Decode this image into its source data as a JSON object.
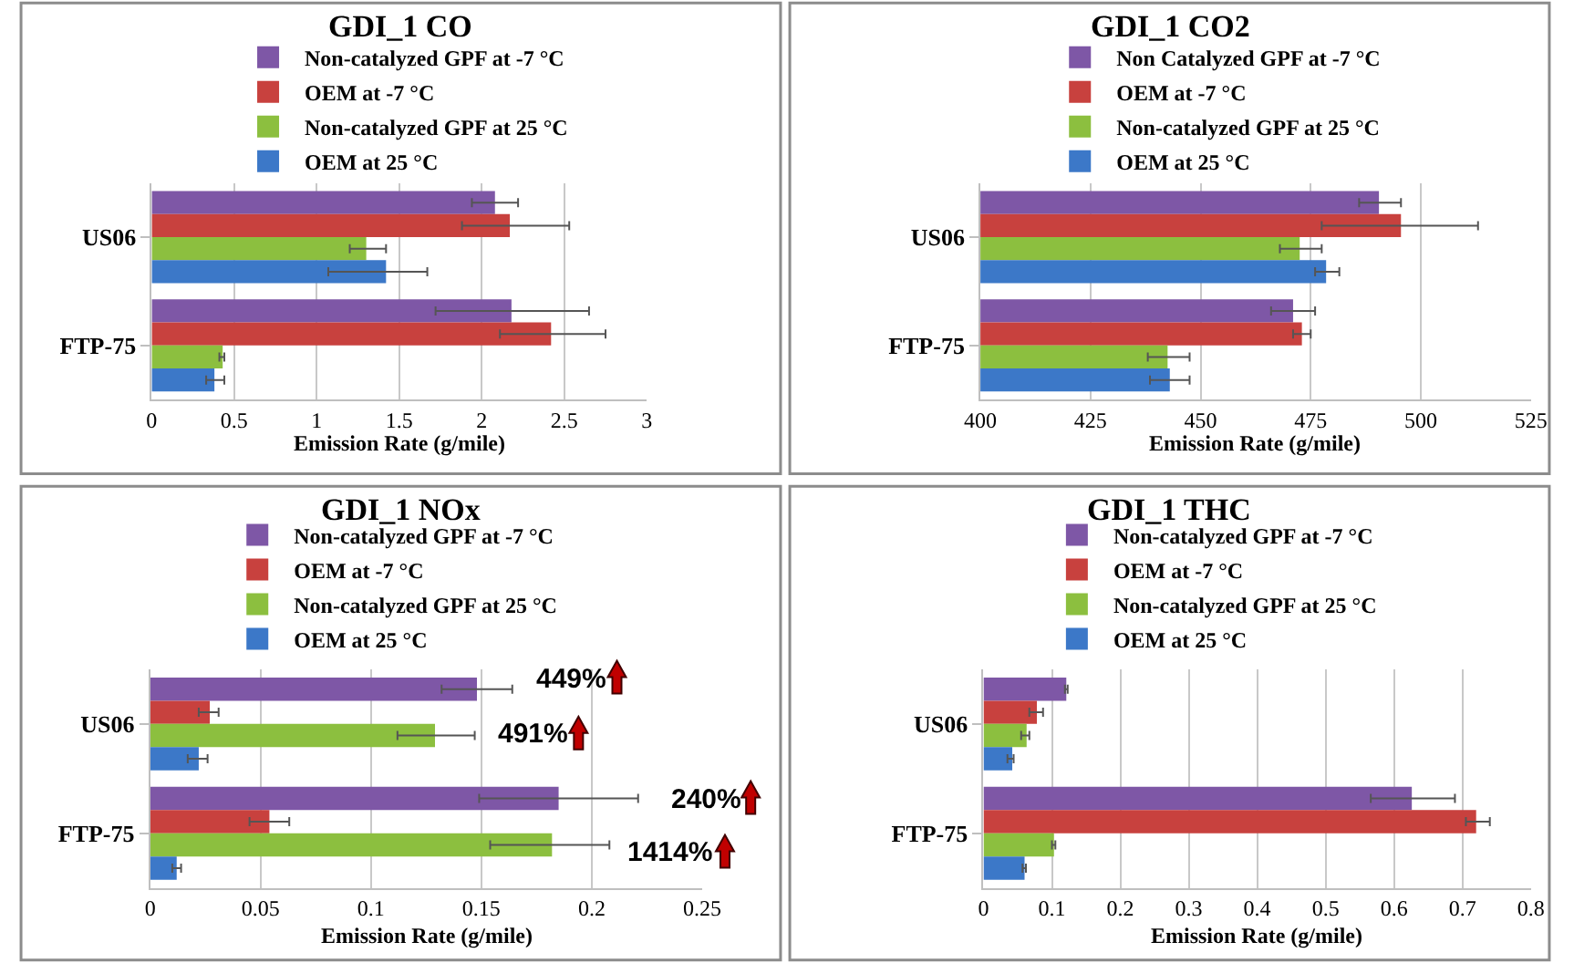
{
  "chart_data": [
    {
      "type": "bar",
      "orientation": "horizontal",
      "title": "GDI_1 CO",
      "xlabel": "Emission Rate (g/mile)",
      "categories": [
        "US06",
        "FTP-75"
      ],
      "xlim": [
        0,
        3
      ],
      "xticks": [
        0,
        0.5,
        1,
        1.5,
        2,
        2.5,
        3
      ],
      "grid": "x",
      "legend": "top",
      "series": [
        {
          "name": "Non-catalyzed GPF at -7 °C",
          "color": "#7e57a6",
          "values": [
            2.08,
            2.18
          ],
          "errors": [
            [
              1.94,
              2.22
            ],
            [
              1.72,
              2.65
            ]
          ]
        },
        {
          "name": "OEM at -7 °C",
          "color": "#c8413e",
          "values": [
            2.17,
            2.42
          ],
          "errors": [
            [
              1.88,
              2.53
            ],
            [
              2.11,
              2.75
            ]
          ]
        },
        {
          "name": "Non-catalyzed GPF at 25 °C",
          "color": "#8cbf3f",
          "values": [
            1.3,
            0.43
          ],
          "errors": [
            [
              1.2,
              1.42
            ],
            [
              0.41,
              0.44
            ]
          ]
        },
        {
          "name": "OEM at 25 °C",
          "color": "#3c78c8",
          "values": [
            1.42,
            0.38
          ],
          "errors": [
            [
              1.07,
              1.67
            ],
            [
              0.33,
              0.44
            ]
          ]
        }
      ]
    },
    {
      "type": "bar",
      "orientation": "horizontal",
      "title": "GDI_1 CO2",
      "xlabel": "Emission Rate (g/mile)",
      "categories": [
        "US06",
        "FTP-75"
      ],
      "xlim": [
        400,
        525
      ],
      "xticks": [
        400,
        425,
        450,
        475,
        500,
        525
      ],
      "grid": "x",
      "legend": "top",
      "series": [
        {
          "name": "Non Catalyzed GPF at -7 °C",
          "color": "#7e57a6",
          "values": [
            490.5,
            471
          ],
          "errors": [
            [
              486,
              495.5
            ],
            [
              466,
              476
            ]
          ]
        },
        {
          "name": "OEM at -7 °C",
          "color": "#c8413e",
          "values": [
            495.5,
            473
          ],
          "errors": [
            [
              477.5,
              513
            ],
            [
              471,
              475
            ]
          ]
        },
        {
          "name": "Non-catalyzed GPF at 25 °C",
          "color": "#8cbf3f",
          "values": [
            472.5,
            442.5
          ],
          "errors": [
            [
              468,
              477.5
            ],
            [
              438,
              447.5
            ]
          ]
        },
        {
          "name": "OEM at 25 °C",
          "color": "#3c78c8",
          "values": [
            478.5,
            443
          ],
          "errors": [
            [
              476,
              481.5
            ],
            [
              438.5,
              447.5
            ]
          ]
        }
      ]
    },
    {
      "type": "bar",
      "orientation": "horizontal",
      "title": "GDI_1 NOx",
      "xlabel": "Emission Rate (g/mile)",
      "categories": [
        "US06",
        "FTP-75"
      ],
      "xlim": [
        0,
        0.25
      ],
      "xticks": [
        0,
        0.05,
        0.1,
        0.15,
        0.2,
        0.25
      ],
      "grid": "x",
      "legend": "top",
      "series": [
        {
          "name": "Non-catalyzed GPF at -7 °C",
          "color": "#7e57a6",
          "values": [
            0.148,
            0.185
          ],
          "errors": [
            [
              0.132,
              0.164
            ],
            [
              0.149,
              0.221
            ]
          ]
        },
        {
          "name": "OEM at -7 °C",
          "color": "#c8413e",
          "values": [
            0.027,
            0.054
          ],
          "errors": [
            [
              0.022,
              0.031
            ],
            [
              0.045,
              0.063
            ]
          ]
        },
        {
          "name": "Non-catalyzed GPF at 25 °C",
          "color": "#8cbf3f",
          "values": [
            0.129,
            0.182
          ],
          "errors": [
            [
              0.112,
              0.147
            ],
            [
              0.154,
              0.208
            ]
          ]
        },
        {
          "name": "OEM at 25 °C",
          "color": "#3c78c8",
          "values": [
            0.022,
            0.012
          ],
          "errors": [
            [
              0.017,
              0.026
            ],
            [
              0.01,
              0.014
            ]
          ]
        }
      ],
      "annotations": [
        "449%",
        "491%",
        "240%",
        "1414%"
      ]
    },
    {
      "type": "bar",
      "orientation": "horizontal",
      "title": "GDI_1 THC",
      "xlabel": "Emission Rate (g/mile)",
      "categories": [
        "US06",
        "FTP-75"
      ],
      "xlim": [
        0,
        0.8
      ],
      "xticks": [
        0,
        0.1,
        0.2,
        0.3,
        0.4,
        0.5,
        0.6,
        0.7,
        0.8
      ],
      "grid": "x",
      "legend": "top",
      "series": [
        {
          "name": "Non-catalyzed GPF at -7 °C",
          "color": "#7e57a6",
          "values": [
            0.121,
            0.626
          ],
          "errors": [
            [
              0.119,
              0.123
            ],
            [
              0.566,
              0.689
            ]
          ]
        },
        {
          "name": "OEM at -7 °C",
          "color": "#c8413e",
          "values": [
            0.078,
            0.72
          ],
          "errors": [
            [
              0.067,
              0.087
            ],
            [
              0.705,
              0.74
            ]
          ]
        },
        {
          "name": "Non-catalyzed GPF at 25 °C",
          "color": "#8cbf3f",
          "values": [
            0.063,
            0.103
          ],
          "errors": [
            [
              0.055,
              0.067
            ],
            [
              0.1,
              0.105
            ]
          ]
        },
        {
          "name": "OEM at 25 °C",
          "color": "#3c78c8",
          "values": [
            0.042,
            0.06
          ],
          "errors": [
            [
              0.035,
              0.044
            ],
            [
              0.057,
              0.062
            ]
          ]
        }
      ]
    }
  ]
}
